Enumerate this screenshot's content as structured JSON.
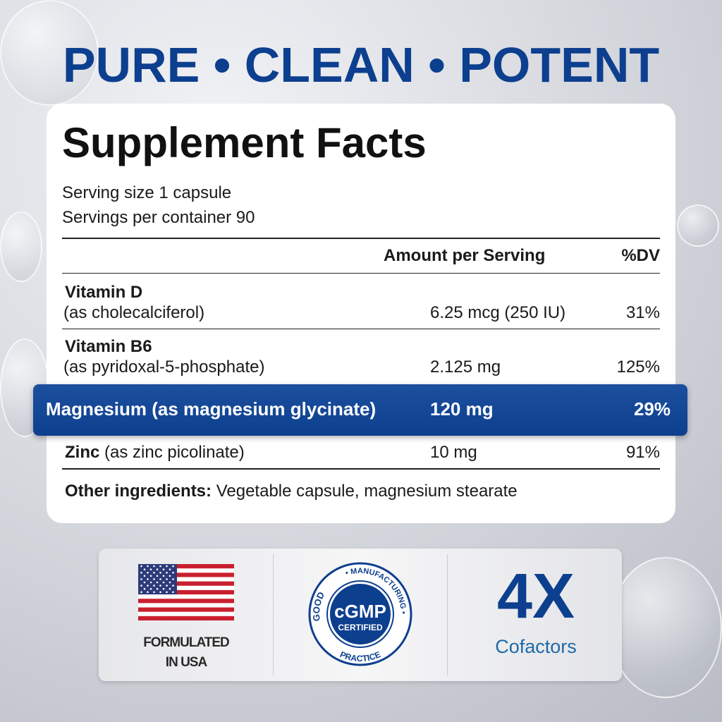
{
  "headline": "PURE • CLEAN • POTENT",
  "facts": {
    "title": "Supplement Facts",
    "serving_size": "Serving size 1 capsule",
    "servings_per_container": "Servings per container 90",
    "header_amount": "Amount per Serving",
    "header_dv": "%DV",
    "rows": [
      {
        "name": "Vitamin D",
        "form": "(as cholecalciferol)",
        "amount": "6.25 mcg (250 IU)",
        "dv": "31%"
      },
      {
        "name": "Vitamin B6",
        "form": "(as pyridoxal-5-phosphate)",
        "amount": "2.125 mg",
        "dv": "125%"
      },
      {
        "name": "Magnesium (as magnesium glycinate)",
        "amount": "120 mg",
        "dv": "29%"
      },
      {
        "name": "Zinc",
        "form": "(as zinc picolinate)",
        "amount": "10 mg",
        "dv": "91%"
      }
    ],
    "other_label": "Other ingredients:",
    "other_value": "Vegetable capsule, magnesium stearate"
  },
  "badges": {
    "usa_line1": "FORMULATED",
    "usa_line2": "IN USA",
    "cgmp_top": "• MANUFACTURING •",
    "cgmp_left": "GOOD",
    "cgmp_bottom": "PRACTICE",
    "cgmp_center": "cGMP",
    "cgmp_sub": "CERTIFIED",
    "cofactor_big": "4X",
    "cofactor_label": "Cofactors"
  },
  "colors": {
    "brand_blue": "#0d3f8f",
    "cofactor_text": "#1e6aa8"
  }
}
